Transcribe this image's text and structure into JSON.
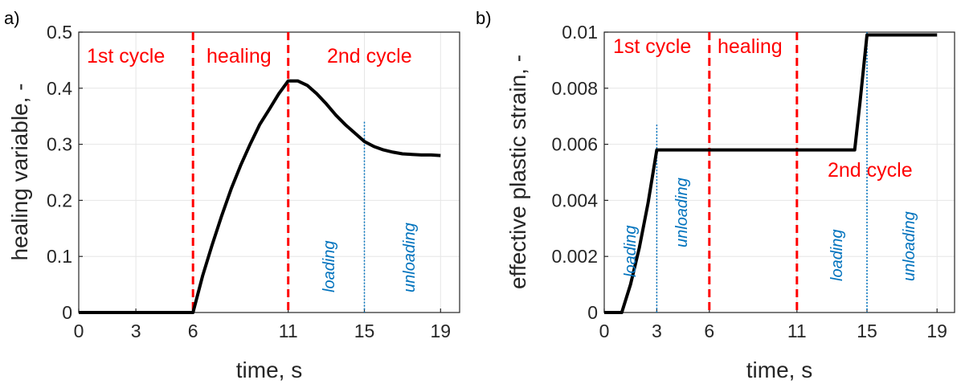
{
  "colors": {
    "curve": "#000000",
    "phase_line": "#ff0000",
    "phase_text": "#ff0000",
    "load_line": "#0072bd",
    "load_text": "#0072bd",
    "grid": "#e6e6e6",
    "axis": "#262626"
  },
  "chart_data": [
    {
      "type": "line",
      "panel_label": "a)",
      "xlabel": "time, s",
      "ylabel": "healing variable, -",
      "xlim": [
        0,
        20
      ],
      "ylim": [
        0,
        0.5
      ],
      "x_ticks": [
        0,
        3,
        6,
        11,
        15,
        19
      ],
      "y_ticks": [
        0,
        0.1,
        0.2,
        0.3,
        0.4,
        0.5
      ],
      "y_tick_labels": [
        "0",
        "0.1",
        "0.2",
        "0.3",
        "0.4",
        "0.5"
      ],
      "grid": true,
      "series": [
        {
          "x": [
            0,
            6,
            6.5,
            7,
            7.5,
            8,
            8.5,
            9,
            9.5,
            10,
            10.5,
            11,
            11.5,
            12,
            12.5,
            13,
            13.5,
            14,
            14.5,
            15,
            15.5,
            16,
            16.5,
            17,
            17.5,
            18,
            18.5,
            19
          ],
          "y": [
            0,
            0,
            0.065,
            0.12,
            0.172,
            0.22,
            0.262,
            0.3,
            0.335,
            0.362,
            0.39,
            0.413,
            0.413,
            0.405,
            0.39,
            0.372,
            0.352,
            0.335,
            0.32,
            0.305,
            0.296,
            0.29,
            0.286,
            0.283,
            0.282,
            0.281,
            0.281,
            0.28
          ]
        }
      ],
      "phase_lines": [
        6,
        11
      ],
      "load_lines": [
        {
          "x": 15,
          "top": 0.34
        }
      ],
      "phase_labels": [
        "1st cycle",
        "healing",
        "2nd cycle"
      ],
      "load_labels": [
        "loading",
        "unloading"
      ]
    },
    {
      "type": "line",
      "panel_label": "b)",
      "xlabel": "time, s",
      "ylabel": "effective plastic strain, -",
      "xlim": [
        0,
        20
      ],
      "ylim": [
        0,
        0.01
      ],
      "x_ticks": [
        0,
        3,
        6,
        11,
        15,
        19
      ],
      "y_ticks": [
        0,
        0.002,
        0.004,
        0.006,
        0.008,
        0.01
      ],
      "y_tick_labels": [
        "0",
        "0.002",
        "0.004",
        "0.006",
        "0.008",
        "0.01"
      ],
      "grid": true,
      "series": [
        {
          "x": [
            0,
            1,
            1.5,
            2,
            2.5,
            3,
            14.3,
            14.6,
            15,
            15.3,
            19
          ],
          "y": [
            0,
            0,
            0.001,
            0.0023,
            0.0039,
            0.0058,
            0.0058,
            0.0075,
            0.0099,
            0.0099,
            0.0099
          ]
        }
      ],
      "phase_lines": [
        6,
        11
      ],
      "load_lines": [
        {
          "x": 3,
          "top": 0.0067
        },
        {
          "x": 15,
          "top": 0.01
        }
      ],
      "phase_labels": [
        "1st cycle",
        "healing",
        "2nd cycle"
      ],
      "load_labels": [
        "loading",
        "unloading",
        "loading",
        "unloading"
      ]
    }
  ]
}
